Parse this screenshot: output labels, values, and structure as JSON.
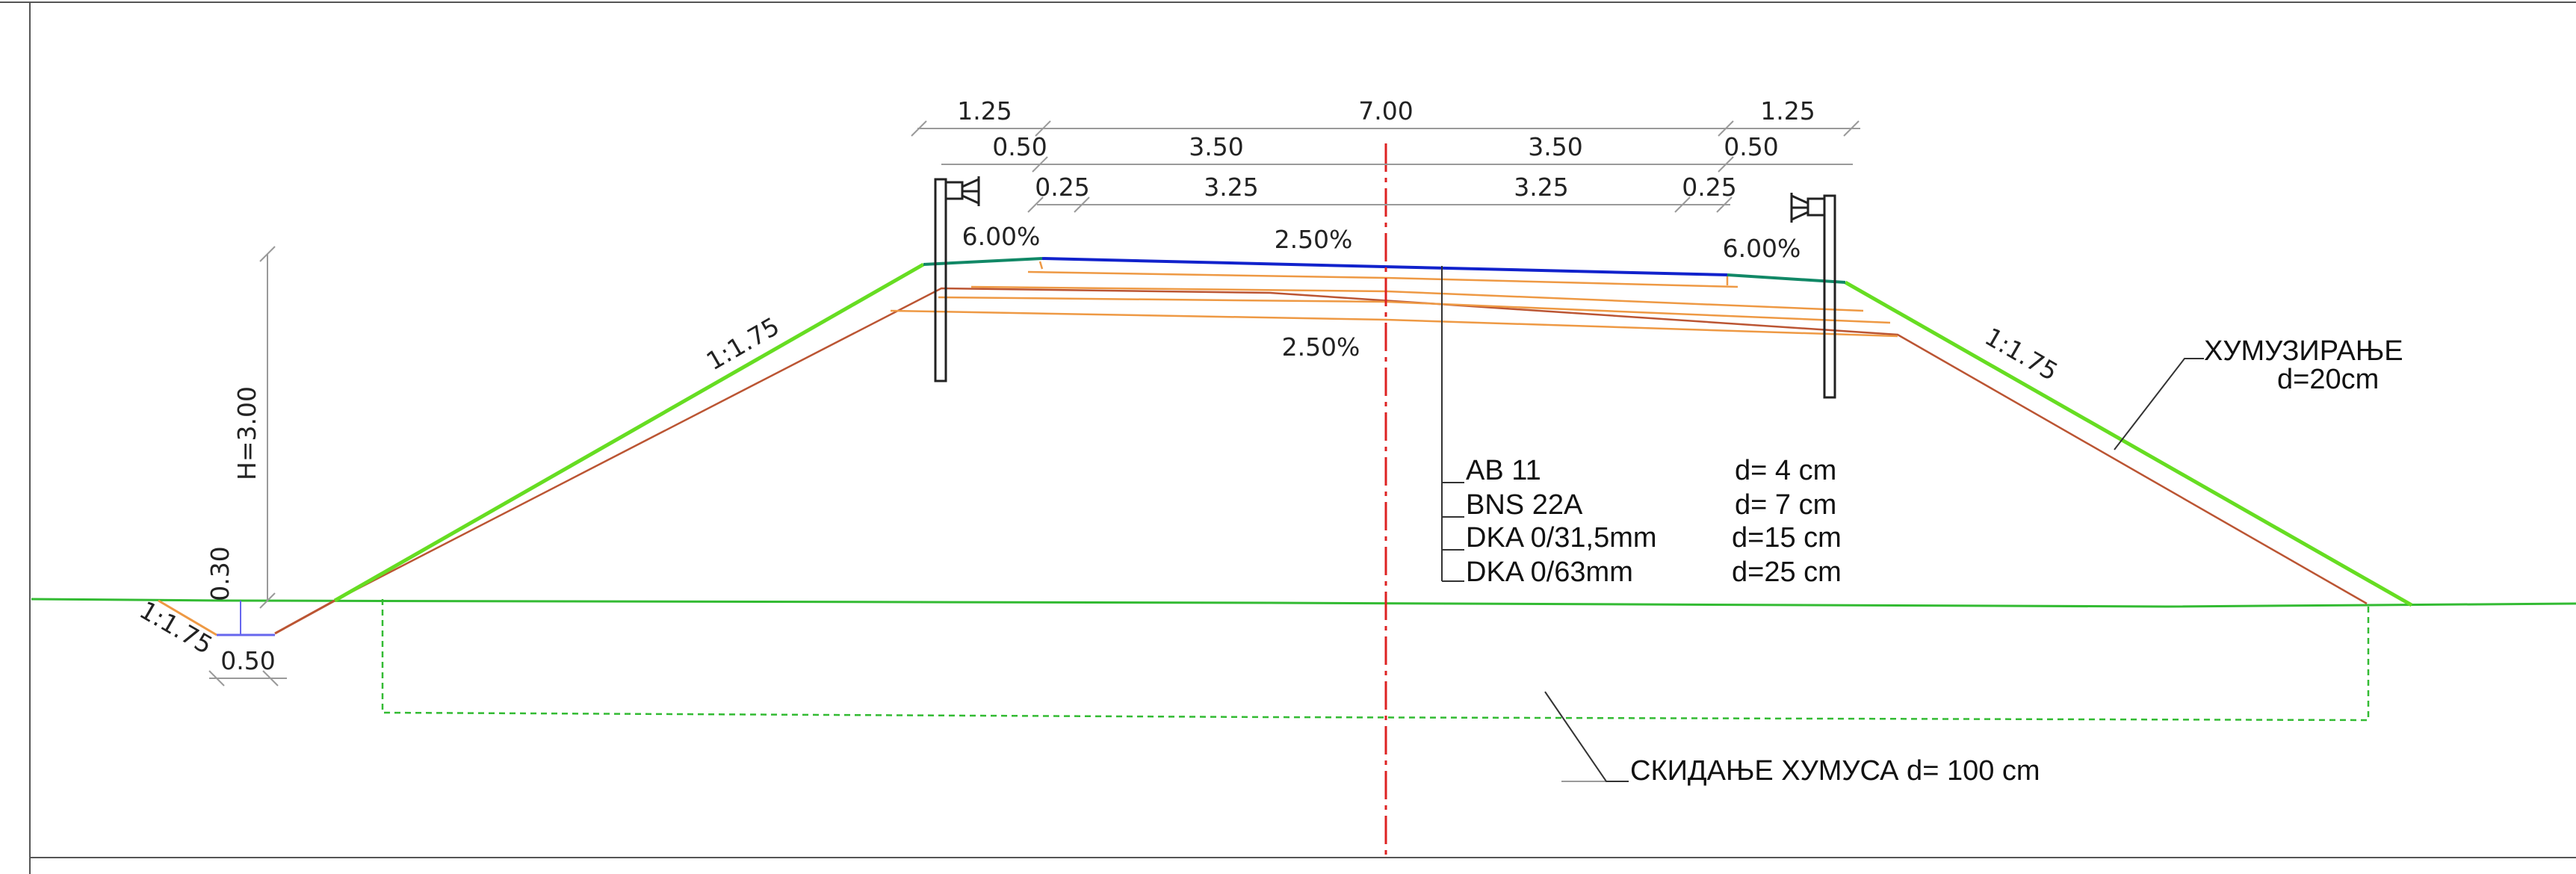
{
  "colors": {
    "frame": "#555555",
    "dimension_line": "#9a9a9a",
    "text": "#1a1a1a",
    "slope_green": "#66dd22",
    "ground": "#33bb33",
    "surface_blue": "#1122cc",
    "shoulder_teal": "#118866",
    "layer_orange": "#ee9944",
    "subgrade_brown": "#bb5533",
    "centerline": "#dd2222",
    "stripping_dashed": "#33bb33",
    "ditch_blue": "#6666ee"
  },
  "dimensions": {
    "top_row": {
      "left_shoulder": "1.25",
      "total_width": "7.00",
      "right_shoulder": "1.25"
    },
    "second_row": {
      "left_verge": "0.50",
      "left_lane": "3.50",
      "right_lane": "3.50",
      "right_verge": "0.50"
    },
    "third_row": {
      "left_edge_strip": "0.25",
      "left_lane_inner": "3.25",
      "right_lane_inner": "3.25",
      "right_edge_strip": "0.25"
    },
    "height": "H=3.00",
    "ditch_depth": "0.30",
    "ditch_width": "0.50"
  },
  "slopes": {
    "left_shoulder": "6.00%",
    "crossfall_surface": "2.50%",
    "right_shoulder": "6.00%",
    "crossfall_subgrade": "2.50%",
    "left_embankment": "1:1.75",
    "right_embankment": "1:1.75",
    "ditch_slope": "1:1.75"
  },
  "pavement_layers": [
    {
      "name": "AB 11",
      "thickness": "d= 4 cm"
    },
    {
      "name": "BNS 22A",
      "thickness": "d= 7 cm"
    },
    {
      "name": "DKA 0/31,5mm",
      "thickness": "d=15 cm"
    },
    {
      "name": "DKA 0/63mm",
      "thickness": "d=25 cm"
    }
  ],
  "annotations": {
    "topsoiling": "ХУМУЗИРАЊЕ",
    "topsoiling_thickness": "d=20cm",
    "topsoil_stripping": "СКИДАЊЕ ХУМУСА  d= 100 cm"
  }
}
